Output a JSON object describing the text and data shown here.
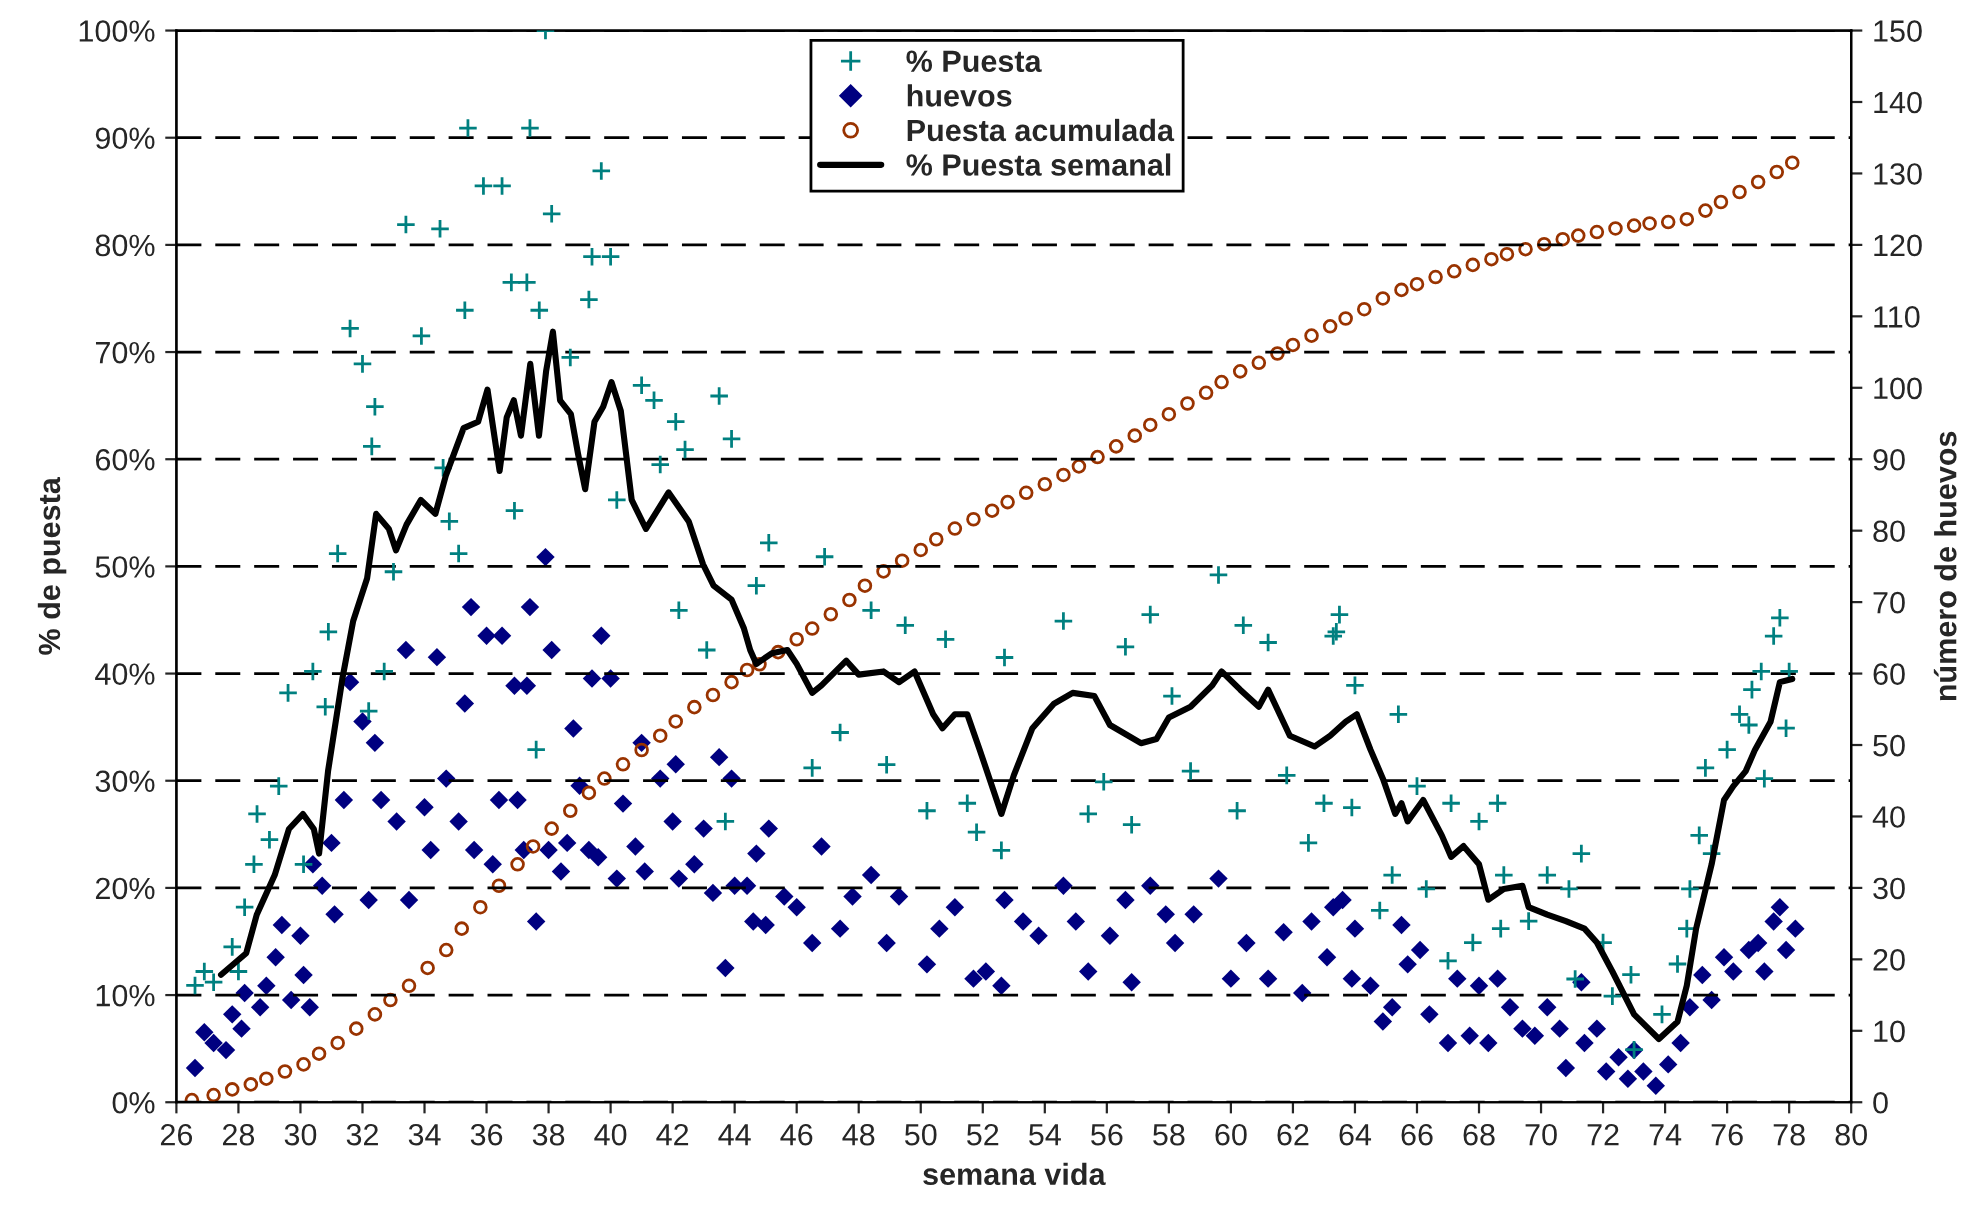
{
  "chart_data": {
    "type": "scatter",
    "xlabel": "semana vida",
    "ylabel": "% de puesta",
    "y2label": "número de huevos",
    "xlim": [
      26,
      80
    ],
    "xticks": [
      26,
      28,
      30,
      32,
      34,
      36,
      38,
      40,
      42,
      44,
      46,
      48,
      50,
      52,
      54,
      56,
      58,
      60,
      62,
      64,
      66,
      68,
      70,
      72,
      74,
      76,
      78,
      80
    ],
    "ylim": [
      0,
      100
    ],
    "yticks": [
      {
        "value": 0,
        "label": "0%"
      },
      {
        "value": 10,
        "label": "10%"
      },
      {
        "value": 20,
        "label": "20%"
      },
      {
        "value": 30,
        "label": "30%"
      },
      {
        "value": 40,
        "label": "40%"
      },
      {
        "value": 50,
        "label": "50%"
      },
      {
        "value": 60,
        "label": "60%"
      },
      {
        "value": 70,
        "label": "70%"
      },
      {
        "value": 80,
        "label": "80%"
      },
      {
        "value": 90,
        "label": "90%"
      },
      {
        "value": 100,
        "label": "100%"
      }
    ],
    "y2lim": [
      0,
      150
    ],
    "y2ticks": [
      0,
      10,
      20,
      30,
      40,
      50,
      60,
      70,
      80,
      90,
      100,
      110,
      120,
      130,
      140,
      150
    ],
    "grid": "y",
    "legend": "top",
    "series": [
      {
        "name": "% Puesta",
        "marker": "cross",
        "color": "#008080",
        "x": [
          26.6,
          26.9,
          27.2,
          27.8,
          28.0,
          28.2,
          28.5,
          28.6,
          29.0,
          29.3,
          29.6,
          30.1,
          30.4,
          30.8,
          30.9,
          31.2,
          31.6,
          32.0,
          32.2,
          32.3,
          32.4,
          32.7,
          33.0,
          33.4,
          33.9,
          34.5,
          34.6,
          34.8,
          35.1,
          35.3,
          35.4,
          35.9,
          36.5,
          36.8,
          36.9,
          37.3,
          37.4,
          37.6,
          37.7,
          37.9,
          38.1,
          38.7,
          39.3,
          39.4,
          39.7,
          40.0,
          40.2,
          41.0,
          41.4,
          41.6,
          42.1,
          42.2,
          42.4,
          43.1,
          43.5,
          43.7,
          43.9,
          44.7,
          45.1,
          46.5,
          46.9,
          47.4,
          48.4,
          48.9,
          49.5,
          50.2,
          50.8,
          51.5,
          51.8,
          52.6,
          52.7,
          54.6,
          55.4,
          55.9,
          56.6,
          56.8,
          57.4,
          58.1,
          58.7,
          59.6,
          60.2,
          60.4,
          61.2,
          61.8,
          62.5,
          63.0,
          63.3,
          63.4,
          63.5,
          63.9,
          64.0,
          64.8,
          65.2,
          65.4,
          66.0,
          66.3,
          67.0,
          67.1,
          67.8,
          68.0,
          68.6,
          68.7,
          68.8,
          69.6,
          70.2,
          70.9,
          71.1,
          71.3,
          72.0,
          72.3,
          72.9,
          73.0,
          73.9,
          74.4,
          74.7,
          74.8,
          75.1,
          75.3,
          75.5,
          76.0,
          76.4,
          76.7,
          76.8,
          77.1,
          77.2,
          77.5,
          77.7,
          77.9,
          78.0
        ],
        "values": [
          10.9,
          12.2,
          11.2,
          14.5,
          12.2,
          18.2,
          22.2,
          26.9,
          24.5,
          29.5,
          38.2,
          22.2,
          40.2,
          36.9,
          43.9,
          51.2,
          72.2,
          68.9,
          36.5,
          61.2,
          64.9,
          40.2,
          49.5,
          81.9,
          71.5,
          81.5,
          59.2,
          54.2,
          51.2,
          73.9,
          90.9,
          85.5,
          85.5,
          76.5,
          55.2,
          76.5,
          90.9,
          32.9,
          73.9,
          100,
          82.9,
          69.5,
          74.9,
          78.9,
          86.9,
          78.9,
          56.2,
          66.9,
          65.5,
          59.5,
          63.5,
          45.9,
          60.9,
          42.2,
          65.9,
          26.2,
          61.9,
          48.2,
          52.2,
          31.2,
          50.9,
          34.5,
          45.9,
          31.5,
          44.5,
          27.2,
          43.2,
          27.9,
          25.2,
          23.5,
          41.5,
          44.9,
          26.9,
          29.9,
          42.5,
          25.9,
          45.5,
          37.9,
          30.9,
          49.2,
          27.2,
          44.5,
          42.9,
          30.5,
          24.2,
          27.9,
          43.5,
          43.9,
          45.5,
          27.5,
          38.9,
          17.9,
          21.2,
          36.2,
          29.5,
          19.9,
          13.2,
          27.9,
          14.9,
          26.2,
          27.9,
          16.2,
          21.2,
          16.9,
          21.2,
          19.9,
          11.5,
          23.2,
          14.9,
          9.9,
          11.9,
          4.9,
          8.2,
          12.9,
          16.2,
          19.9,
          24.9,
          31.2,
          23.2,
          32.9,
          36.2,
          35.2,
          38.5,
          40.2,
          30.2,
          43.5,
          45.2,
          34.9,
          40.2
        ]
      },
      {
        "name": "huevos",
        "axis": "y2",
        "marker": "diamond",
        "color": "#000080",
        "x": [
          26.6,
          26.9,
          27.2,
          27.6,
          27.8,
          28.1,
          28.2,
          28.7,
          28.9,
          29.2,
          29.4,
          29.7,
          30.0,
          30.1,
          30.3,
          30.4,
          30.7,
          31.0,
          31.1,
          31.4,
          31.6,
          32.0,
          32.2,
          32.4,
          32.6,
          33.1,
          33.4,
          33.5,
          34.0,
          34.2,
          34.4,
          34.7,
          35.1,
          35.3,
          35.5,
          35.6,
          36.0,
          36.2,
          36.4,
          36.5,
          36.9,
          37.0,
          37.2,
          37.3,
          37.4,
          37.6,
          37.9,
          38.0,
          38.1,
          38.4,
          38.6,
          38.8,
          39.0,
          39.3,
          39.4,
          39.6,
          39.7,
          40.0,
          40.2,
          40.4,
          40.8,
          41.0,
          41.1,
          41.6,
          42.0,
          42.1,
          42.2,
          42.7,
          43.0,
          43.3,
          43.5,
          43.7,
          43.9,
          44.0,
          44.4,
          44.6,
          44.7,
          45.0,
          45.1,
          45.6,
          46.0,
          46.5,
          46.8,
          47.4,
          47.8,
          48.4,
          48.9,
          49.3,
          50.2,
          50.6,
          51.1,
          51.7,
          52.1,
          52.6,
          52.7,
          53.3,
          53.8,
          54.6,
          55.0,
          55.4,
          56.1,
          56.6,
          56.8,
          57.4,
          57.9,
          58.2,
          58.8,
          59.6,
          60.0,
          60.5,
          61.2,
          61.7,
          62.3,
          62.6,
          63.1,
          63.3,
          63.6,
          63.9,
          64.0,
          64.5,
          64.9,
          65.2,
          65.5,
          65.7,
          66.1,
          66.4,
          67.0,
          67.3,
          67.7,
          68.0,
          68.3,
          68.6,
          69.0,
          69.4,
          69.8,
          70.2,
          70.6,
          70.8,
          71.3,
          71.4,
          71.8,
          72.1,
          72.5,
          72.8,
          73.0,
          73.3,
          73.7,
          74.1,
          74.5,
          74.8,
          75.2,
          75.5,
          75.9,
          76.2,
          76.7,
          77.0,
          77.2,
          77.5,
          77.7,
          77.9,
          78.2
        ],
        "values": [
          4.8,
          9.8,
          8.3,
          7.3,
          12.3,
          10.3,
          15.3,
          13.3,
          16.3,
          20.3,
          24.8,
          14.3,
          23.3,
          17.8,
          13.3,
          33.3,
          30.3,
          36.3,
          26.3,
          42.3,
          58.8,
          53.3,
          28.3,
          50.3,
          42.3,
          39.3,
          63.3,
          28.3,
          41.3,
          35.3,
          62.3,
          45.3,
          39.3,
          55.8,
          69.3,
          35.3,
          65.3,
          33.3,
          42.3,
          65.3,
          58.3,
          42.3,
          35.3,
          58.3,
          69.3,
          25.3,
          76.3,
          35.3,
          63.3,
          32.3,
          36.3,
          52.3,
          44.3,
          35.3,
          59.3,
          34.3,
          65.3,
          59.3,
          31.3,
          41.8,
          35.8,
          50.3,
          32.3,
          45.3,
          39.3,
          47.3,
          31.3,
          33.3,
          38.3,
          29.3,
          48.3,
          18.8,
          45.3,
          30.3,
          30.3,
          25.3,
          34.8,
          24.8,
          38.3,
          28.8,
          27.3,
          22.3,
          35.8,
          24.3,
          28.8,
          31.8,
          22.3,
          28.8,
          19.3,
          24.3,
          27.3,
          17.3,
          18.3,
          16.3,
          28.3,
          25.3,
          23.3,
          30.3,
          25.3,
          18.3,
          23.3,
          28.3,
          16.8,
          30.3,
          26.3,
          22.3,
          26.3,
          31.3,
          17.3,
          22.3,
          17.3,
          23.8,
          15.3,
          25.3,
          20.3,
          27.3,
          28.3,
          17.3,
          24.3,
          16.3,
          11.3,
          13.3,
          24.8,
          19.3,
          21.3,
          12.3,
          8.3,
          17.3,
          9.3,
          16.3,
          8.3,
          17.3,
          13.3,
          10.3,
          9.3,
          13.3,
          10.3,
          4.8,
          16.8,
          8.3,
          10.3,
          4.3,
          6.3,
          3.3,
          7.3,
          4.3,
          2.3,
          5.3,
          8.3,
          13.3,
          17.8,
          14.3,
          20.3,
          18.3,
          21.3,
          22.3,
          18.3,
          25.3,
          27.3,
          21.3,
          24.3
        ]
      },
      {
        "name": "Puesta acumulada",
        "axis": "y2",
        "marker": "circle",
        "color": "#993300",
        "x": [
          26.5,
          27.2,
          27.8,
          28.4,
          28.9,
          29.5,
          30.1,
          30.6,
          31.2,
          31.8,
          32.4,
          32.9,
          33.5,
          34.1,
          34.7,
          35.2,
          35.8,
          36.4,
          37.0,
          37.5,
          38.1,
          38.7,
          39.3,
          39.8,
          40.4,
          41.0,
          41.6,
          42.1,
          42.7,
          43.3,
          43.9,
          44.4,
          44.8,
          45.4,
          46.0,
          46.5,
          47.1,
          47.7,
          48.2,
          48.8,
          49.4,
          50.0,
          50.5,
          51.1,
          51.7,
          52.3,
          52.8,
          53.4,
          54.0,
          54.6,
          55.1,
          55.7,
          56.3,
          56.9,
          57.4,
          58.0,
          58.6,
          59.2,
          59.7,
          60.3,
          60.9,
          61.5,
          62.0,
          62.6,
          63.2,
          63.7,
          64.3,
          64.9,
          65.5,
          66.0,
          66.6,
          67.2,
          67.8,
          68.4,
          68.9,
          69.5,
          70.1,
          70.7,
          71.2,
          71.8,
          72.4,
          73.0,
          73.5,
          74.1,
          74.7,
          75.3,
          75.8,
          76.4,
          77.0,
          77.6,
          78.1
        ],
        "values": [
          0.3,
          1.0,
          1.8,
          2.5,
          3.3,
          4.3,
          5.3,
          6.8,
          8.3,
          10.3,
          12.3,
          14.3,
          16.3,
          18.8,
          21.3,
          24.3,
          27.3,
          30.3,
          33.3,
          35.8,
          38.3,
          40.8,
          43.3,
          45.3,
          47.3,
          49.3,
          51.3,
          53.3,
          55.3,
          57.0,
          58.8,
          60.5,
          61.3,
          63.0,
          64.8,
          66.3,
          68.3,
          70.3,
          72.3,
          74.3,
          75.8,
          77.3,
          78.8,
          80.3,
          81.6,
          82.8,
          84.0,
          85.3,
          86.5,
          87.8,
          89.0,
          90.3,
          91.8,
          93.3,
          94.8,
          96.3,
          97.8,
          99.3,
          100.8,
          102.3,
          103.5,
          104.8,
          106.0,
          107.3,
          108.6,
          109.7,
          111.0,
          112.5,
          113.7,
          114.5,
          115.5,
          116.3,
          117.2,
          118.0,
          118.7,
          119.4,
          120.1,
          120.8,
          121.3,
          121.8,
          122.3,
          122.7,
          123.0,
          123.2,
          123.6,
          124.8,
          126.0,
          127.4,
          128.8,
          130.2,
          131.5
        ]
      },
      {
        "name": "% Puesta semanal",
        "type": "line",
        "marker": "none",
        "line_style": "solid",
        "color": "#000000",
        "x": [
          27.44,
          28.25,
          28.59,
          29.17,
          29.63,
          30.08,
          30.43,
          30.6,
          30.89,
          31.35,
          31.7,
          32.15,
          32.44,
          32.85,
          33.08,
          33.42,
          33.88,
          34.35,
          34.69,
          35.26,
          35.73,
          36.03,
          36.42,
          36.65,
          36.88,
          37.11,
          37.41,
          37.69,
          37.92,
          38.14,
          38.37,
          38.72,
          38.95,
          39.18,
          39.48,
          39.76,
          40.03,
          40.33,
          40.68,
          41.14,
          41.87,
          42.52,
          42.98,
          43.32,
          43.9,
          44.3,
          44.5,
          44.7,
          45.2,
          45.7,
          46.0,
          46.5,
          46.8,
          47.6,
          48.0,
          48.8,
          49.3,
          49.8,
          50.4,
          50.7,
          51.1,
          51.5,
          51.9,
          52.6,
          53.0,
          53.6,
          54.3,
          54.9,
          55.6,
          56.1,
          57.1,
          57.6,
          58.0,
          58.7,
          59.4,
          59.7,
          60.3,
          60.9,
          61.2,
          61.9,
          62.7,
          63.2,
          63.7,
          64.06,
          64.5,
          64.9,
          65.3,
          65.5,
          65.7,
          66.2,
          66.8,
          67.1,
          67.5,
          68.0,
          68.3,
          68.8,
          69.4,
          69.6,
          70.2,
          70.8,
          71.4,
          71.8,
          72.3,
          73.0,
          73.8,
          74.4,
          74.7,
          75.0,
          75.5,
          75.9,
          76.2,
          76.6,
          76.9,
          77.4,
          77.7,
          78.1
        ],
        "values": [
          11.9,
          13.9,
          17.5,
          21.2,
          25.5,
          26.9,
          25.5,
          23.2,
          30.9,
          39.5,
          44.9,
          48.9,
          54.9,
          53.5,
          51.5,
          53.9,
          56.2,
          54.9,
          58.5,
          62.9,
          63.5,
          66.5,
          58.9,
          63.9,
          65.5,
          62.2,
          68.9,
          62.2,
          68.2,
          71.9,
          65.5,
          64.2,
          60.5,
          57.2,
          63.5,
          64.9,
          67.2,
          64.5,
          56.2,
          53.5,
          56.9,
          54.2,
          50.2,
          48.2,
          46.9,
          44.2,
          42.2,
          40.9,
          41.9,
          42.2,
          40.9,
          38.2,
          38.9,
          41.2,
          39.9,
          40.2,
          39.2,
          40.2,
          36.2,
          34.9,
          36.2,
          36.2,
          32.9,
          26.9,
          30.5,
          34.9,
          37.2,
          38.2,
          37.9,
          35.2,
          33.5,
          33.9,
          35.9,
          36.9,
          38.9,
          40.2,
          38.5,
          36.9,
          38.5,
          34.2,
          33.2,
          34.2,
          35.5,
          36.2,
          32.9,
          30.2,
          26.9,
          27.9,
          26.2,
          28.2,
          24.9,
          22.9,
          23.9,
          22.2,
          18.9,
          19.9,
          20.2,
          18.2,
          17.5,
          16.9,
          16.2,
          14.9,
          12.2,
          8.2,
          5.9,
          7.5,
          10.9,
          16.2,
          22.2,
          28.2,
          29.5,
          30.9,
          32.9,
          35.5,
          39.2,
          39.5
        ]
      }
    ]
  }
}
